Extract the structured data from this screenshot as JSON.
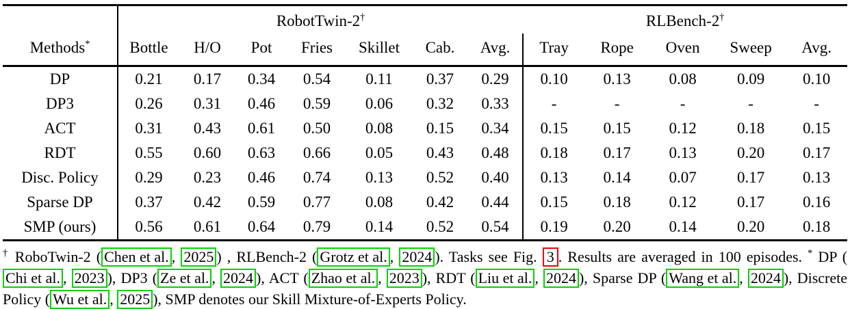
{
  "table": {
    "methods_header": {
      "label": "Methods",
      "sup": "*"
    },
    "col_groups": [
      {
        "label": "RobotTwin-2",
        "sup": "†",
        "span": 7
      },
      {
        "label": "RLBench-2",
        "sup": "†",
        "span": 5
      }
    ],
    "columns": [
      "Bottle",
      "H/O",
      "Pot",
      "Fries",
      "Skillet",
      "Cab.",
      "Avg.",
      "Tray",
      "Rope",
      "Oven",
      "Sweep",
      "Avg."
    ],
    "rows": [
      {
        "method": "DP",
        "values": [
          "0.21",
          "0.17",
          "0.34",
          "0.54",
          "0.11",
          "0.37",
          "0.29",
          "0.10",
          "0.13",
          "0.08",
          "0.09",
          "0.10"
        ],
        "bold": []
      },
      {
        "method": "DP3",
        "values": [
          "0.26",
          "0.31",
          "0.46",
          "0.59",
          "0.06",
          "0.32",
          "0.33",
          "-",
          "-",
          "-",
          "-",
          "-"
        ],
        "bold": []
      },
      {
        "method": "ACT",
        "values": [
          "0.31",
          "0.43",
          "0.61",
          "0.50",
          "0.08",
          "0.15",
          "0.34",
          "0.15",
          "0.15",
          "0.12",
          "0.18",
          "0.15"
        ],
        "bold": []
      },
      {
        "method": "RDT",
        "values": [
          "0.55",
          "0.60",
          "0.63",
          "0.66",
          "0.05",
          "0.43",
          "0.48",
          "0.18",
          "0.17",
          "0.13",
          "0.20",
          "0.17"
        ],
        "bold": [
          10
        ]
      },
      {
        "method": "Disc. Policy",
        "values": [
          "0.29",
          "0.23",
          "0.46",
          "0.74",
          "0.13",
          "0.52",
          "0.40",
          "0.13",
          "0.14",
          "0.07",
          "0.17",
          "0.13"
        ],
        "bold": [
          5
        ]
      },
      {
        "method": "Sparse DP",
        "values": [
          "0.37",
          "0.42",
          "0.59",
          "0.77",
          "0.08",
          "0.42",
          "0.44",
          "0.15",
          "0.18",
          "0.12",
          "0.17",
          "0.16"
        ],
        "bold": []
      },
      {
        "method": "SMP (ours)",
        "values": [
          "0.56",
          "0.61",
          "0.64",
          "0.79",
          "0.14",
          "0.52",
          "0.54",
          "0.19",
          "0.20",
          "0.14",
          "0.20",
          "0.18"
        ],
        "bold": [
          0,
          1,
          2,
          3,
          4,
          5,
          6,
          7,
          8,
          9,
          10,
          11
        ]
      }
    ]
  },
  "footnote": {
    "colors": {
      "cite_box": "#00d300",
      "ref_box": "#ee0000"
    },
    "segments": [
      {
        "t": "sup",
        "text": "†"
      },
      {
        "t": "text",
        "text": " RoboTwin-2 ("
      },
      {
        "t": "cite",
        "text": "Chen et al."
      },
      {
        "t": "text",
        "text": ", "
      },
      {
        "t": "cite",
        "text": "2025"
      },
      {
        "t": "text",
        "text": ") , RLBench-2 ("
      },
      {
        "t": "cite",
        "text": "Grotz et al."
      },
      {
        "t": "text",
        "text": ", "
      },
      {
        "t": "cite",
        "text": "2024"
      },
      {
        "t": "text",
        "text": "). Tasks see Fig. "
      },
      {
        "t": "ref",
        "text": "3"
      },
      {
        "t": "text",
        "text": ". Results are averaged in 100 episodes. "
      },
      {
        "t": "sup",
        "text": "*"
      },
      {
        "t": "text",
        "text": " DP ("
      },
      {
        "t": "cite",
        "text": "Chi et al."
      },
      {
        "t": "text",
        "text": ", "
      },
      {
        "t": "cite",
        "text": "2023"
      },
      {
        "t": "text",
        "text": "), DP3 ("
      },
      {
        "t": "cite",
        "text": "Ze et al."
      },
      {
        "t": "text",
        "text": ", "
      },
      {
        "t": "cite",
        "text": "2024"
      },
      {
        "t": "text",
        "text": "), ACT ("
      },
      {
        "t": "cite",
        "text": "Zhao et al."
      },
      {
        "t": "text",
        "text": ", "
      },
      {
        "t": "cite",
        "text": "2023"
      },
      {
        "t": "text",
        "text": "), RDT ("
      },
      {
        "t": "cite",
        "text": "Liu et al."
      },
      {
        "t": "text",
        "text": ", "
      },
      {
        "t": "cite",
        "text": "2024"
      },
      {
        "t": "text",
        "text": "), Sparse DP ("
      },
      {
        "t": "cite",
        "text": "Wang et al."
      },
      {
        "t": "text",
        "text": ", "
      },
      {
        "t": "cite",
        "text": "2024"
      },
      {
        "t": "text",
        "text": "), Discrete Policy ("
      },
      {
        "t": "cite",
        "text": "Wu et al."
      },
      {
        "t": "text",
        "text": ", "
      },
      {
        "t": "cite",
        "text": "2025"
      },
      {
        "t": "text",
        "text": "), SMP denotes our Skill Mixture-of-Experts Policy."
      }
    ]
  }
}
